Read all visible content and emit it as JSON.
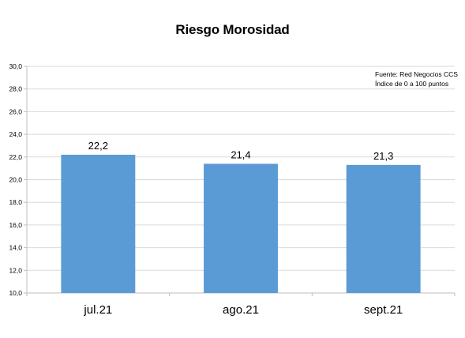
{
  "chart_data": {
    "type": "bar",
    "title": "Riesgo Morosidad",
    "categories": [
      "jul.21",
      "ago.21",
      "sept.21"
    ],
    "values": [
      22.2,
      21.4,
      21.3
    ],
    "value_labels": [
      "22,2",
      "21,4",
      "21,3"
    ],
    "ylim": [
      10.0,
      30.0
    ],
    "yticks": [
      "10,0",
      "12,0",
      "14,0",
      "16,0",
      "18,0",
      "20,0",
      "22,0",
      "24,0",
      "26,0",
      "28,0",
      "30,0"
    ],
    "xlabel": "",
    "ylabel": "",
    "grid": true,
    "bar_color": "#5b9bd5",
    "annotations": [
      "Fuente: Red Negocios CCS",
      "Índice de 0 a 100 puntos"
    ]
  }
}
